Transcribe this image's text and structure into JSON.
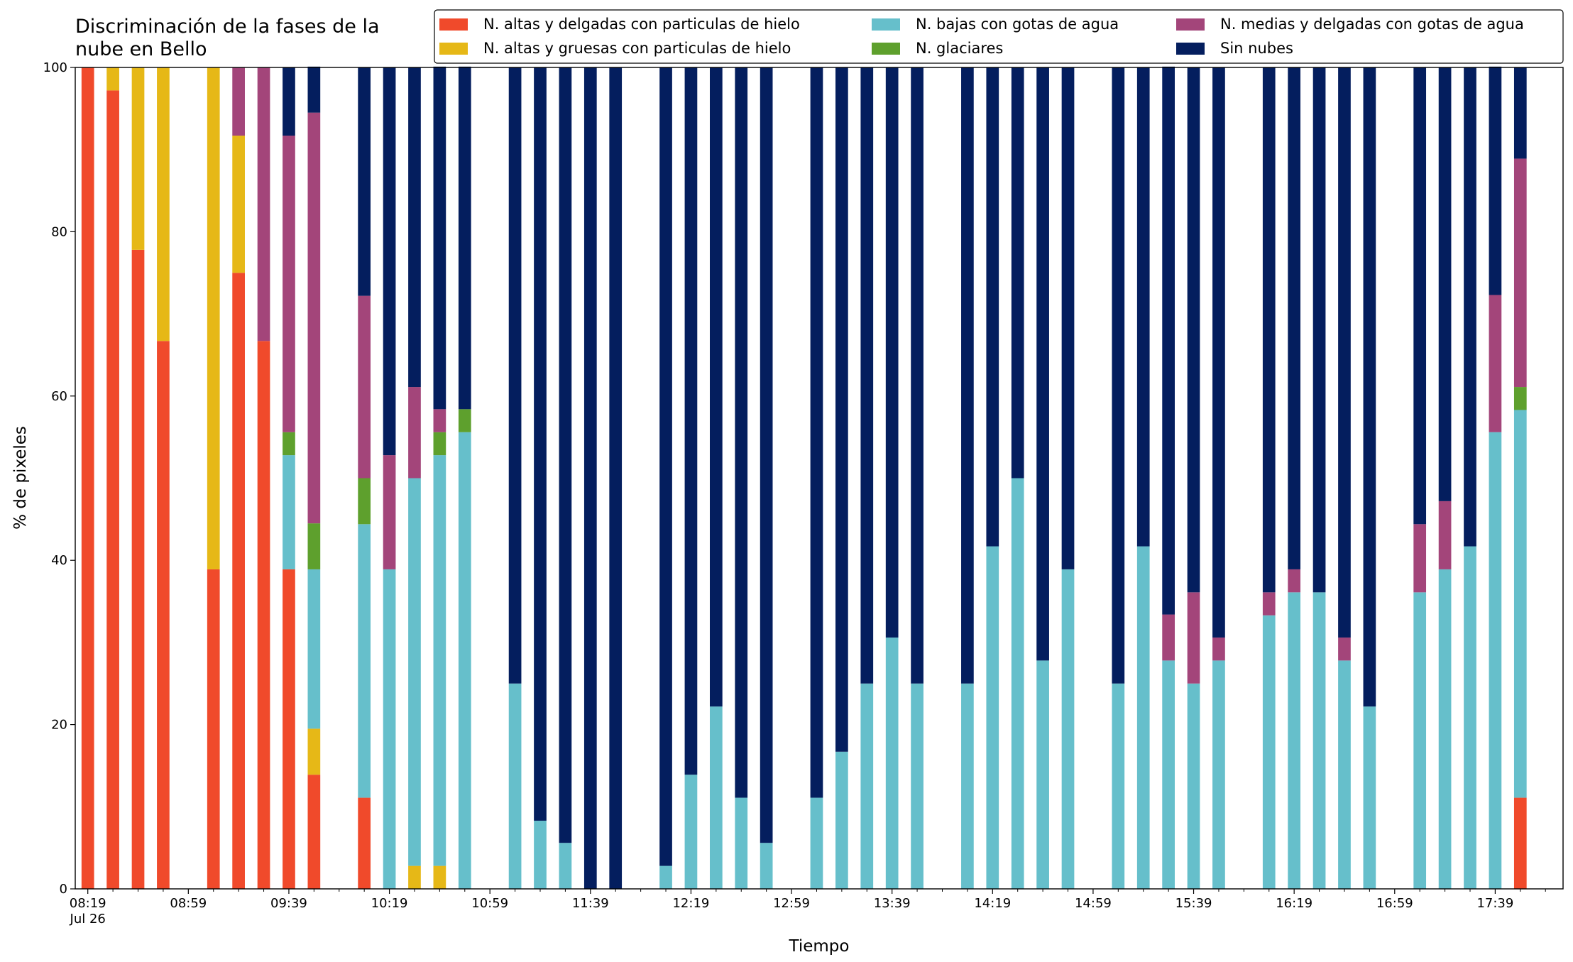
{
  "chart_data": {
    "type": "stacked_bar",
    "title": "Discriminación de la fases de la nube en Bello",
    "xlabel": "Tiempo",
    "ylabel": "% de pixeles",
    "x": [
      "08:19",
      "08:29",
      "08:39",
      "08:49",
      "09:09",
      "09:19",
      "09:29",
      "09:39",
      "09:49",
      "10:09",
      "10:19",
      "10:29",
      "10:39",
      "10:49",
      "11:09",
      "11:19",
      "11:29",
      "11:39",
      "11:49",
      "12:09",
      "12:19",
      "12:29",
      "12:39",
      "12:49",
      "13:09",
      "13:19",
      "13:29",
      "13:39",
      "13:49",
      "14:09",
      "14:19",
      "14:29",
      "14:39",
      "14:49",
      "15:09",
      "15:19",
      "15:29",
      "15:39",
      "15:49",
      "16:09",
      "16:19",
      "16:29",
      "16:39",
      "16:49",
      "17:09",
      "17:19",
      "17:29",
      "17:39",
      "17:49"
    ],
    "series": [
      {
        "name": "N. altas y delgadas con particulas de hielo",
        "color": "#f04a2b",
        "values": [
          100,
          97.2,
          77.8,
          66.7,
          38.9,
          75,
          66.7,
          38.9,
          13.9,
          11.1,
          0,
          0,
          0,
          0,
          0,
          0,
          0,
          0,
          0,
          0,
          0,
          0,
          0,
          0,
          0,
          0,
          0,
          0,
          0,
          0,
          0,
          0,
          0,
          0,
          0,
          0,
          0,
          0,
          0,
          0,
          0,
          0,
          0,
          0,
          0,
          0,
          0,
          0,
          11.1
        ]
      },
      {
        "name": "N. altas y gruesas con particulas de hielo",
        "color": "#e6b817",
        "values": [
          0,
          2.8,
          22.2,
          33.3,
          61.1,
          16.7,
          0,
          0,
          5.6,
          0,
          0,
          2.8,
          2.8,
          0,
          0,
          0,
          0,
          0,
          0,
          0,
          0,
          0,
          0,
          0,
          0,
          0,
          0,
          0,
          0,
          0,
          0,
          0,
          0,
          0,
          0,
          0,
          0,
          0,
          0,
          0,
          0,
          0,
          0,
          0,
          0,
          0,
          0,
          0,
          0
        ]
      },
      {
        "name": "N. bajas con gotas de agua",
        "color": "#66bfcb",
        "values": [
          0,
          0,
          0,
          0,
          0,
          0,
          0,
          13.9,
          19.4,
          33.3,
          38.9,
          47.2,
          50,
          55.6,
          25,
          8.3,
          5.6,
          0,
          0,
          2.8,
          13.9,
          22.2,
          11.1,
          5.6,
          11.1,
          16.7,
          25,
          30.6,
          25,
          25,
          41.7,
          50,
          27.8,
          38.9,
          25,
          41.7,
          27.8,
          25,
          27.8,
          33.3,
          36.1,
          36.1,
          27.8,
          22.2,
          36.1,
          38.9,
          41.7,
          55.6,
          47.2
        ]
      },
      {
        "name": "N. glaciares",
        "color": "#5ea02d",
        "values": [
          0,
          0,
          0,
          0,
          0,
          0,
          0,
          2.8,
          5.6,
          5.6,
          0,
          0,
          2.8,
          2.8,
          0,
          0,
          0,
          0,
          0,
          0,
          0,
          0,
          0,
          0,
          0,
          0,
          0,
          0,
          0,
          0,
          0,
          0,
          0,
          0,
          0,
          0,
          0,
          0,
          0,
          0,
          0,
          0,
          0,
          0,
          0,
          0,
          0,
          0,
          2.8
        ]
      },
      {
        "name": "N. medias y delgadas con gotas de agua",
        "color": "#a3457a",
        "values": [
          0,
          0,
          0,
          0,
          0,
          8.3,
          33.3,
          36.1,
          50,
          22.2,
          13.9,
          11.1,
          2.8,
          0,
          0,
          0,
          0,
          0,
          0,
          0,
          0,
          0,
          0,
          0,
          0,
          0,
          0,
          0,
          0,
          0,
          0,
          0,
          0,
          0,
          0,
          0,
          5.6,
          11.1,
          2.8,
          2.8,
          2.8,
          0,
          2.8,
          0,
          8.3,
          8.3,
          0,
          16.7,
          27.8
        ]
      },
      {
        "name": "Sin nubes",
        "color": "#041e5e",
        "values": [
          0,
          0,
          0,
          0,
          0,
          0,
          0,
          8.3,
          5.6,
          27.8,
          47.2,
          38.9,
          41.7,
          41.7,
          75,
          91.7,
          94.4,
          100,
          100,
          97.2,
          86.1,
          77.8,
          88.9,
          94.4,
          88.9,
          83.3,
          75,
          69.4,
          75,
          75,
          58.3,
          50,
          72.2,
          61.1,
          75,
          58.3,
          66.7,
          63.9,
          69.4,
          63.9,
          61.1,
          63.9,
          69.4,
          77.8,
          55.6,
          52.8,
          58.3,
          27.8,
          11.1
        ]
      }
    ],
    "xlim": [
      "08:14",
      "18:06"
    ],
    "xticks": [
      "08:19",
      "08:59",
      "09:39",
      "10:19",
      "10:59",
      "11:39",
      "12:19",
      "12:59",
      "13:39",
      "14:19",
      "14:59",
      "15:39",
      "16:19",
      "16:59",
      "17:39"
    ],
    "xticks_minor": [
      "08:29",
      "08:39",
      "08:49",
      "09:09",
      "09:19",
      "09:29",
      "09:49",
      "09:59",
      "10:09",
      "10:29",
      "10:39",
      "10:49",
      "11:09",
      "11:19",
      "11:29",
      "11:49",
      "11:59",
      "12:09",
      "12:29",
      "12:39",
      "12:49",
      "13:09",
      "13:19",
      "13:29",
      "13:49",
      "13:59",
      "14:09",
      "14:29",
      "14:39",
      "14:49",
      "15:09",
      "15:19",
      "15:29",
      "15:49",
      "15:59",
      "16:09",
      "16:29",
      "16:39",
      "16:49",
      "17:09",
      "17:19",
      "17:29",
      "17:49",
      "17:59"
    ],
    "xtick_date": "Jul 26",
    "ylim": [
      0,
      100
    ],
    "yticks": [
      0,
      20,
      40,
      60,
      80,
      100
    ],
    "legend": "top-right",
    "grid": false
  }
}
